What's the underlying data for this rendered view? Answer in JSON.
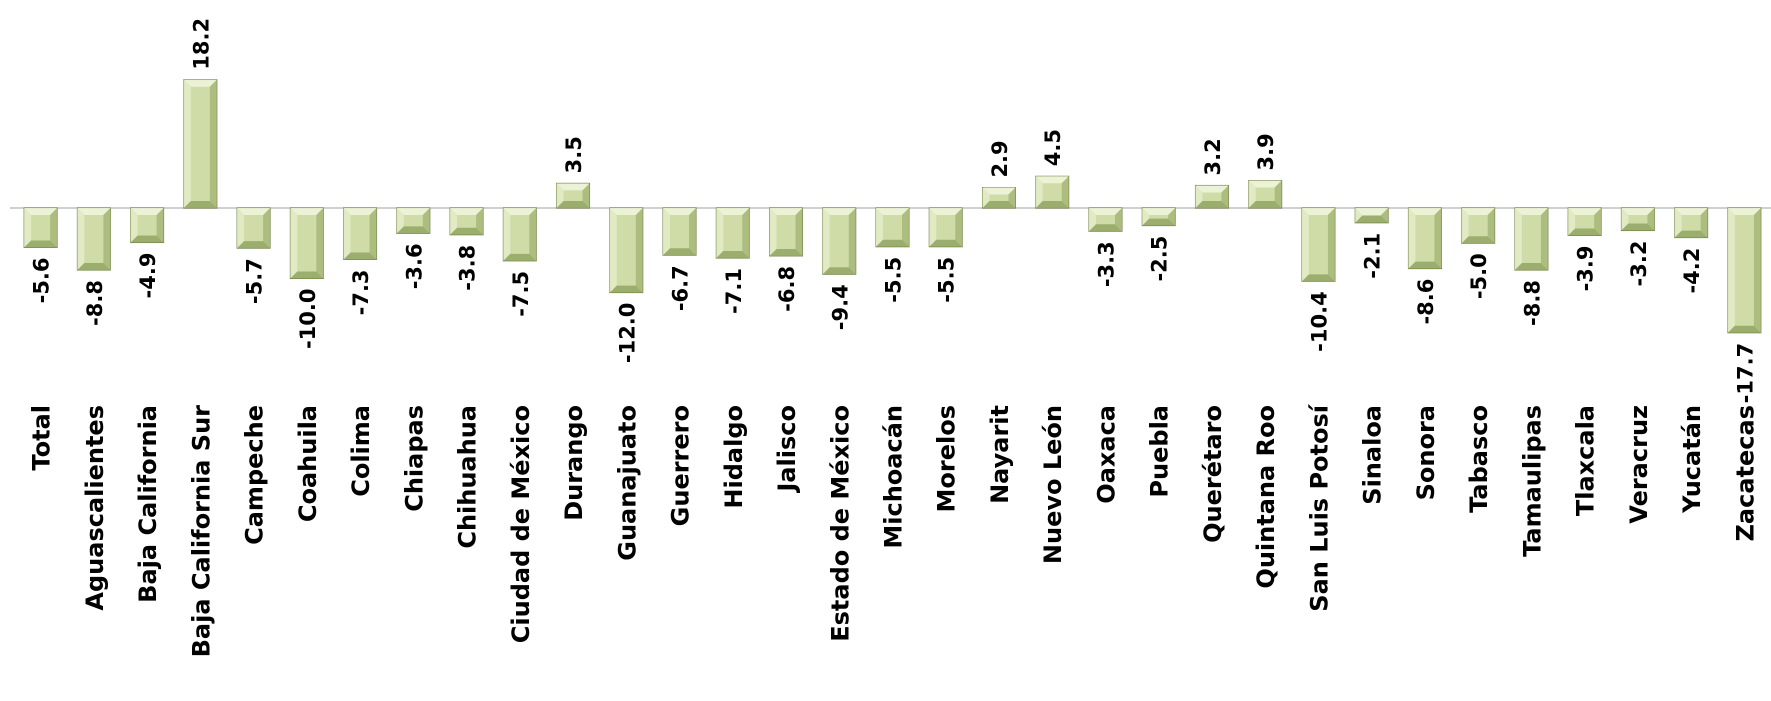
{
  "chart_data": {
    "type": "bar",
    "title": "",
    "xlabel": "",
    "ylabel": "",
    "ylim": [
      -18,
      19
    ],
    "grid": false,
    "legend": "none",
    "bar_color": "#cfdca8",
    "bar_edge_color": "#6f7f45",
    "axis_color": "#d0d0d0",
    "categories": [
      "Total",
      "Aguascalientes",
      "Baja California",
      "Baja California Sur",
      "Campeche",
      "Coahuila",
      "Colima",
      "Chiapas",
      "Chihuahua",
      "Ciudad de México",
      "Durango",
      "Guanajuato",
      "Guerrero",
      "Hidalgo",
      "Jalisco",
      "Estado de México",
      "Michoacán",
      "Morelos",
      "Nayarit",
      "Nuevo León",
      "Oaxaca",
      "Puebla",
      "Querétaro",
      "Quintana Roo",
      "San Luis Potosí",
      "Sinaloa",
      "Sonora",
      "Tabasco",
      "Tamaulipas",
      "Tlaxcala",
      "Veracruz",
      "Yucatán",
      "Zacatecas"
    ],
    "values": [
      -5.6,
      -8.8,
      -4.9,
      18.2,
      -5.7,
      -10.0,
      -7.3,
      -3.6,
      -3.8,
      -7.5,
      3.5,
      -12.0,
      -6.7,
      -7.1,
      -6.8,
      -9.4,
      -5.5,
      -5.5,
      2.9,
      4.5,
      -3.3,
      -2.5,
      3.2,
      3.9,
      -10.4,
      -2.1,
      -8.6,
      -5.0,
      -8.8,
      -3.9,
      -3.2,
      -4.2,
      -17.7
    ],
    "value_labels": [
      "-5.6",
      "-8.8",
      "-4.9",
      "18.2",
      "-5.7",
      "-10.0",
      "-7.3",
      "-3.6",
      "-3.8",
      "-7.5",
      "3.5",
      "-12.0",
      "-6.7",
      "-7.1",
      "-6.8",
      "-9.4",
      "-5.5",
      "-5.5",
      "2.9",
      "4.5",
      "-3.3",
      "-2.5",
      "3.2",
      "3.9",
      "-10.4",
      "-2.1",
      "-8.6",
      "-5.0",
      "-8.8",
      "-3.9",
      "-3.2",
      "-4.2",
      "-17.7"
    ]
  }
}
